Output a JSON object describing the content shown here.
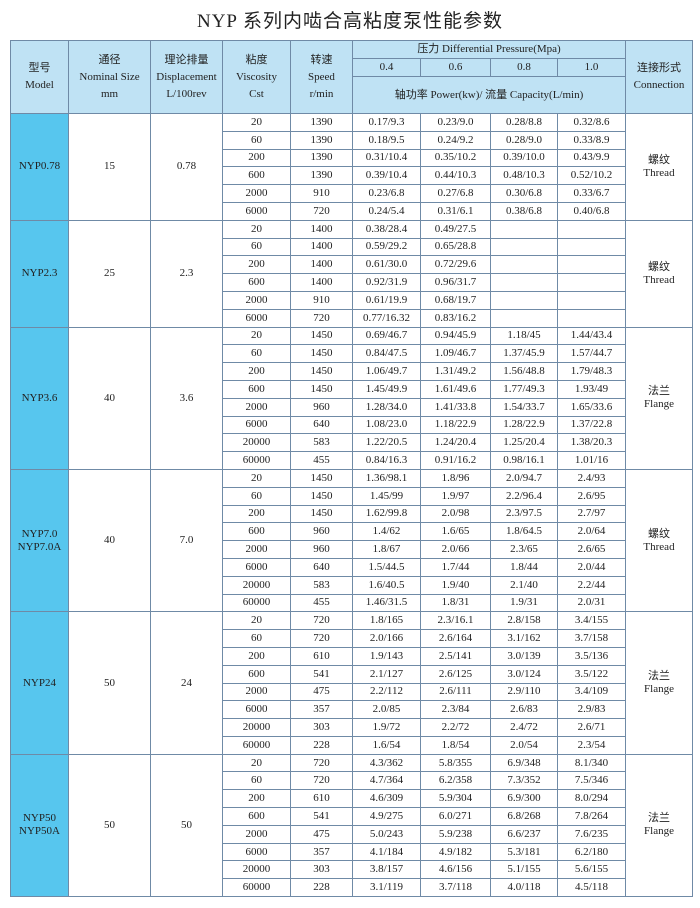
{
  "title": "NYP 系列内啮合高粘度泵性能参数",
  "header": {
    "model": [
      "型号",
      "Model"
    ],
    "size": [
      "通径",
      "Nominal Size",
      "mm"
    ],
    "displacement": [
      "理论排量",
      "Displacement",
      "L/100rev"
    ],
    "viscosity": [
      "粘度",
      "Viscosity",
      "Cst"
    ],
    "speed": [
      "转速",
      "Speed",
      "r/min"
    ],
    "pressure": "压力 Differential Pressure(Mpa)",
    "pressures": [
      "0.4",
      "0.6",
      "0.8",
      "1.0"
    ],
    "output": "轴功率 Power(kw)/ 流量 Capacity(L/min)",
    "connection": [
      "连接形式",
      "Connection"
    ]
  },
  "groups": [
    {
      "model": [
        "NYP0.78"
      ],
      "size": "15",
      "displacement": "0.78",
      "connection": [
        "螺纹",
        "Thread"
      ],
      "rows": [
        [
          "20",
          "1390",
          "0.17/9.3",
          "0.23/9.0",
          "0.28/8.8",
          "0.32/8.6"
        ],
        [
          "60",
          "1390",
          "0.18/9.5",
          "0.24/9.2",
          "0.28/9.0",
          "0.33/8.9"
        ],
        [
          "200",
          "1390",
          "0.31/10.4",
          "0.35/10.2",
          "0.39/10.0",
          "0.43/9.9"
        ],
        [
          "600",
          "1390",
          "0.39/10.4",
          "0.44/10.3",
          "0.48/10.3",
          "0.52/10.2"
        ],
        [
          "2000",
          "910",
          "0.23/6.8",
          "0.27/6.8",
          "0.30/6.8",
          "0.33/6.7"
        ],
        [
          "6000",
          "720",
          "0.24/5.4",
          "0.31/6.1",
          "0.38/6.8",
          "0.40/6.8"
        ]
      ]
    },
    {
      "model": [
        "NYP2.3"
      ],
      "size": "25",
      "displacement": "2.3",
      "connection": [
        "螺纹",
        "Thread"
      ],
      "rows": [
        [
          "20",
          "1400",
          "0.38/28.4",
          "0.49/27.5"
        ],
        [
          "60",
          "1400",
          "0.59/29.2",
          "0.65/28.8"
        ],
        [
          "200",
          "1400",
          "0.61/30.0",
          "0.72/29.6"
        ],
        [
          "600",
          "1400",
          "0.92/31.9",
          "0.96/31.7"
        ],
        [
          "2000",
          "910",
          "0.61/19.9",
          "0.68/19.7"
        ],
        [
          "6000",
          "720",
          "0.77/16.32",
          "0.83/16.2"
        ]
      ]
    },
    {
      "model": [
        "NYP3.6"
      ],
      "size": "40",
      "displacement": "3.6",
      "connection": [
        "法兰",
        "Flange"
      ],
      "rows": [
        [
          "20",
          "1450",
          "0.69/46.7",
          "0.94/45.9",
          "1.18/45",
          "1.44/43.4"
        ],
        [
          "60",
          "1450",
          "0.84/47.5",
          "1.09/46.7",
          "1.37/45.9",
          "1.57/44.7"
        ],
        [
          "200",
          "1450",
          "1.06/49.7",
          "1.31/49.2",
          "1.56/48.8",
          "1.79/48.3"
        ],
        [
          "600",
          "1450",
          "1.45/49.9",
          "1.61/49.6",
          "1.77/49.3",
          "1.93/49"
        ],
        [
          "2000",
          "960",
          "1.28/34.0",
          "1.41/33.8",
          "1.54/33.7",
          "1.65/33.6"
        ],
        [
          "6000",
          "640",
          "1.08/23.0",
          "1.18/22.9",
          "1.28/22.9",
          "1.37/22.8"
        ],
        [
          "20000",
          "583",
          "1.22/20.5",
          "1.24/20.4",
          "1.25/20.4",
          "1.38/20.3"
        ],
        [
          "60000",
          "455",
          "0.84/16.3",
          "0.91/16.2",
          "0.98/16.1",
          "1.01/16"
        ]
      ]
    },
    {
      "model": [
        "NYP7.0",
        "NYP7.0A"
      ],
      "size": "40",
      "displacement": "7.0",
      "connection": [
        "螺纹",
        "Thread"
      ],
      "rows": [
        [
          "20",
          "1450",
          "1.36/98.1",
          "1.8/96",
          "2.0/94.7",
          "2.4/93"
        ],
        [
          "60",
          "1450",
          "1.45/99",
          "1.9/97",
          "2.2/96.4",
          "2.6/95"
        ],
        [
          "200",
          "1450",
          "1.62/99.8",
          "2.0/98",
          "2.3/97.5",
          "2.7/97"
        ],
        [
          "600",
          "960",
          "1.4/62",
          "1.6/65",
          "1.8/64.5",
          "2.0/64"
        ],
        [
          "2000",
          "960",
          "1.8/67",
          "2.0/66",
          "2.3/65",
          "2.6/65"
        ],
        [
          "6000",
          "640",
          "1.5/44.5",
          "1.7/44",
          "1.8/44",
          "2.0/44"
        ],
        [
          "20000",
          "583",
          "1.6/40.5",
          "1.9/40",
          "2.1/40",
          "2.2/44"
        ],
        [
          "60000",
          "455",
          "1.46/31.5",
          "1.8/31",
          "1.9/31",
          "2.0/31"
        ]
      ]
    },
    {
      "model": [
        "NYP24"
      ],
      "size": "50",
      "displacement": "24",
      "connection": [
        "法兰",
        "Flange"
      ],
      "rows": [
        [
          "20",
          "720",
          "1.8/165",
          "2.3/16.1",
          "2.8/158",
          "3.4/155"
        ],
        [
          "60",
          "720",
          "2.0/166",
          "2.6/164",
          "3.1/162",
          "3.7/158"
        ],
        [
          "200",
          "610",
          "1.9/143",
          "2.5/141",
          "3.0/139",
          "3.5/136"
        ],
        [
          "600",
          "541",
          "2.1/127",
          "2.6/125",
          "3.0/124",
          "3.5/122"
        ],
        [
          "2000",
          "475",
          "2.2/112",
          "2.6/111",
          "2.9/110",
          "3.4/109"
        ],
        [
          "6000",
          "357",
          "2.0/85",
          "2.3/84",
          "2.6/83",
          "2.9/83"
        ],
        [
          "20000",
          "303",
          "1.9/72",
          "2.2/72",
          "2.4/72",
          "2.6/71"
        ],
        [
          "60000",
          "228",
          "1.6/54",
          "1.8/54",
          "2.0/54",
          "2.3/54"
        ]
      ]
    },
    {
      "model": [
        "NYP50",
        "NYP50A"
      ],
      "size": "50",
      "displacement": "50",
      "connection": [
        "法兰",
        "Flange"
      ],
      "rows": [
        [
          "20",
          "720",
          "4.3/362",
          "5.8/355",
          "6.9/348",
          "8.1/340"
        ],
        [
          "60",
          "720",
          "4.7/364",
          "6.2/358",
          "7.3/352",
          "7.5/346"
        ],
        [
          "200",
          "610",
          "4.6/309",
          "5.9/304",
          "6.9/300",
          "8.0/294"
        ],
        [
          "600",
          "541",
          "4.9/275",
          "6.0/271",
          "6.8/268",
          "7.8/264"
        ],
        [
          "2000",
          "475",
          "5.0/243",
          "5.9/238",
          "6.6/237",
          "7.6/235"
        ],
        [
          "6000",
          "357",
          "4.1/184",
          "4.9/182",
          "5.3/181",
          "6.2/180"
        ],
        [
          "20000",
          "303",
          "3.8/157",
          "4.6/156",
          "5.1/155",
          "5.6/155"
        ],
        [
          "60000",
          "228",
          "3.1/119",
          "3.7/118",
          "4.0/118",
          "4.5/118"
        ]
      ]
    }
  ]
}
